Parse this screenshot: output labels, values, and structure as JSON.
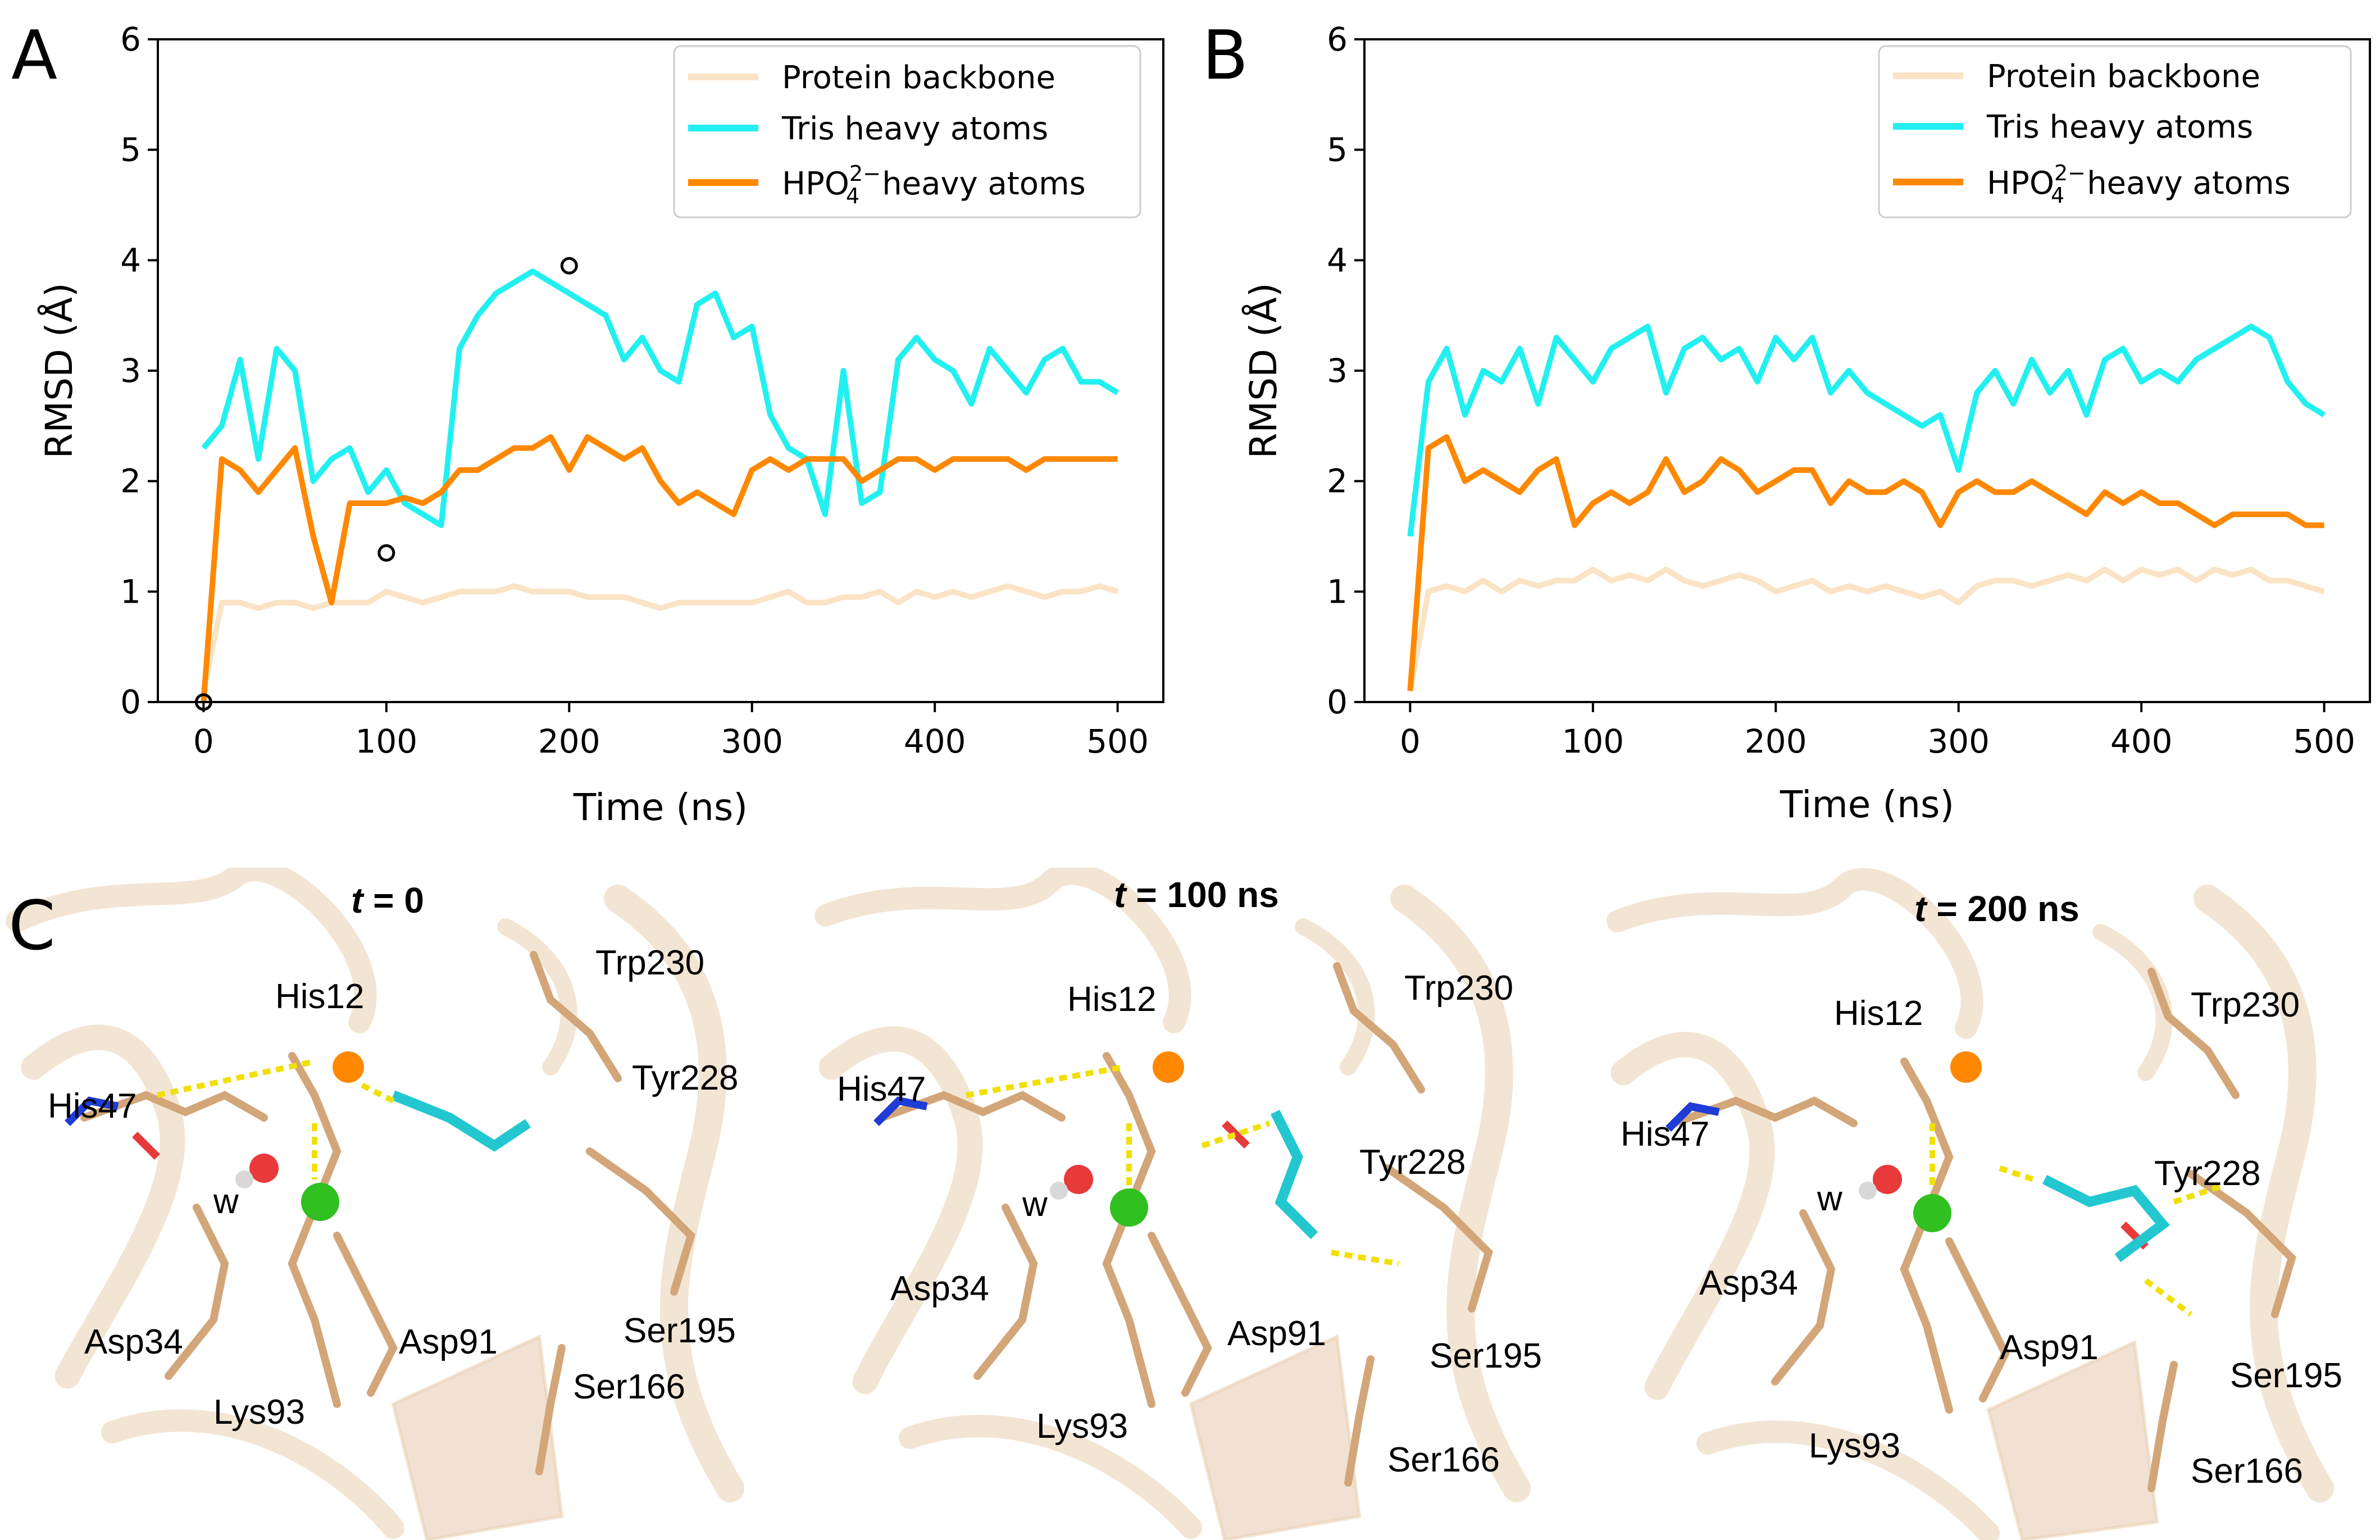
{
  "panels": {
    "a": "A",
    "b": "B",
    "c": "C"
  },
  "axes": {
    "xlabel": "Time (ns)",
    "ylabel": "RMSD (Å)",
    "xticks": [
      "0",
      "100",
      "200",
      "300",
      "400",
      "500"
    ],
    "yticks": [
      "0",
      "1",
      "2",
      "3",
      "4",
      "5",
      "6"
    ]
  },
  "legend": {
    "backbone": "Protein backbone",
    "tris": "Tris heavy atoms",
    "hpo_base": "HPO",
    "hpo_sup": "2−",
    "hpo_sub": "4",
    "hpo_rest": "heavy atoms"
  },
  "colors": {
    "backbone": "#fbe3c5",
    "tris": "#22f0f0",
    "hpo": "#ff8800"
  },
  "chart_data": [
    {
      "type": "line",
      "panel": "A",
      "xlabel": "Time (ns)",
      "ylabel": "RMSD (Å)",
      "xlim": [
        -25,
        525
      ],
      "ylim": [
        0,
        6
      ],
      "x": [
        0,
        10,
        20,
        30,
        40,
        50,
        60,
        70,
        80,
        90,
        100,
        110,
        120,
        130,
        140,
        150,
        160,
        170,
        180,
        190,
        200,
        210,
        220,
        230,
        240,
        250,
        260,
        270,
        280,
        290,
        300,
        310,
        320,
        330,
        340,
        350,
        360,
        370,
        380,
        390,
        400,
        410,
        420,
        430,
        440,
        450,
        460,
        470,
        480,
        490,
        500
      ],
      "series": [
        {
          "name": "Protein backbone",
          "values": [
            0.1,
            0.9,
            0.9,
            0.85,
            0.9,
            0.9,
            0.85,
            0.9,
            0.9,
            0.9,
            1.0,
            0.95,
            0.9,
            0.95,
            1.0,
            1.0,
            1.0,
            1.05,
            1.0,
            1.0,
            1.0,
            0.95,
            0.95,
            0.95,
            0.9,
            0.85,
            0.9,
            0.9,
            0.9,
            0.9,
            0.9,
            0.95,
            1.0,
            0.9,
            0.9,
            0.95,
            0.95,
            1.0,
            0.9,
            1.0,
            0.95,
            1.0,
            0.95,
            1.0,
            1.05,
            1.0,
            0.95,
            1.0,
            1.0,
            1.05,
            1.0
          ]
        },
        {
          "name": "Tris heavy atoms",
          "values": [
            2.3,
            2.5,
            3.1,
            2.2,
            3.2,
            3.0,
            2.0,
            2.2,
            2.3,
            1.9,
            2.1,
            1.8,
            1.7,
            1.6,
            3.2,
            3.5,
            3.7,
            3.8,
            3.9,
            3.8,
            3.7,
            3.6,
            3.5,
            3.1,
            3.3,
            3.0,
            2.9,
            3.6,
            3.7,
            3.3,
            3.4,
            2.6,
            2.3,
            2.2,
            1.7,
            3.0,
            1.8,
            1.9,
            3.1,
            3.3,
            3.1,
            3.0,
            2.7,
            3.2,
            3.0,
            2.8,
            3.1,
            3.2,
            2.9,
            2.9,
            2.8
          ]
        },
        {
          "name": "HPO4 2- heavy atoms",
          "values": [
            0.0,
            2.2,
            2.1,
            1.9,
            2.1,
            2.3,
            1.5,
            0.9,
            1.8,
            1.8,
            1.8,
            1.85,
            1.8,
            1.9,
            2.1,
            2.1,
            2.2,
            2.3,
            2.3,
            2.4,
            2.1,
            2.4,
            2.3,
            2.2,
            2.3,
            2.0,
            1.8,
            1.9,
            1.8,
            1.7,
            2.1,
            2.2,
            2.1,
            2.2,
            2.2,
            2.2,
            2.0,
            2.1,
            2.2,
            2.2,
            2.1,
            2.2,
            2.2,
            2.2,
            2.2,
            2.1,
            2.2,
            2.2,
            2.2,
            2.2,
            2.2
          ]
        }
      ],
      "markers": [
        {
          "x": 0,
          "y": 0.0
        },
        {
          "x": 100,
          "y": 1.35
        },
        {
          "x": 200,
          "y": 3.95
        }
      ],
      "legend_position": "top-right"
    },
    {
      "type": "line",
      "panel": "B",
      "xlabel": "Time (ns)",
      "ylabel": "RMSD (Å)",
      "xlim": [
        -25,
        525
      ],
      "ylim": [
        0,
        6
      ],
      "x": [
        0,
        10,
        20,
        30,
        40,
        50,
        60,
        70,
        80,
        90,
        100,
        110,
        120,
        130,
        140,
        150,
        160,
        170,
        180,
        190,
        200,
        210,
        220,
        230,
        240,
        250,
        260,
        270,
        280,
        290,
        300,
        310,
        320,
        330,
        340,
        350,
        360,
        370,
        380,
        390,
        400,
        410,
        420,
        430,
        440,
        450,
        460,
        470,
        480,
        490,
        500
      ],
      "series": [
        {
          "name": "Protein backbone",
          "values": [
            0.1,
            1.0,
            1.05,
            1.0,
            1.1,
            1.0,
            1.1,
            1.05,
            1.1,
            1.1,
            1.2,
            1.1,
            1.15,
            1.1,
            1.2,
            1.1,
            1.05,
            1.1,
            1.15,
            1.1,
            1.0,
            1.05,
            1.1,
            1.0,
            1.05,
            1.0,
            1.05,
            1.0,
            0.95,
            1.0,
            0.9,
            1.05,
            1.1,
            1.1,
            1.05,
            1.1,
            1.15,
            1.1,
            1.2,
            1.1,
            1.2,
            1.15,
            1.2,
            1.1,
            1.2,
            1.15,
            1.2,
            1.1,
            1.1,
            1.05,
            1.0
          ]
        },
        {
          "name": "Tris heavy atoms",
          "values": [
            1.5,
            2.9,
            3.2,
            2.6,
            3.0,
            2.9,
            3.2,
            2.7,
            3.3,
            3.1,
            2.9,
            3.2,
            3.3,
            3.4,
            2.8,
            3.2,
            3.3,
            3.1,
            3.2,
            2.9,
            3.3,
            3.1,
            3.3,
            2.8,
            3.0,
            2.8,
            2.7,
            2.6,
            2.5,
            2.6,
            2.1,
            2.8,
            3.0,
            2.7,
            3.1,
            2.8,
            3.0,
            2.6,
            3.1,
            3.2,
            2.9,
            3.0,
            2.9,
            3.1,
            3.2,
            3.3,
            3.4,
            3.3,
            2.9,
            2.7,
            2.6
          ]
        },
        {
          "name": "HPO4 2- heavy atoms",
          "values": [
            0.1,
            2.3,
            2.4,
            2.0,
            2.1,
            2.0,
            1.9,
            2.1,
            2.2,
            1.6,
            1.8,
            1.9,
            1.8,
            1.9,
            2.2,
            1.9,
            2.0,
            2.2,
            2.1,
            1.9,
            2.0,
            2.1,
            2.1,
            1.8,
            2.0,
            1.9,
            1.9,
            2.0,
            1.9,
            1.6,
            1.9,
            2.0,
            1.9,
            1.9,
            2.0,
            1.9,
            1.8,
            1.7,
            1.9,
            1.8,
            1.9,
            1.8,
            1.8,
            1.7,
            1.6,
            1.7,
            1.7,
            1.7,
            1.7,
            1.6,
            1.6
          ]
        }
      ],
      "legend_position": "top-right"
    }
  ],
  "snapshots": [
    {
      "title_italic": "t",
      "title_rest": " = 0",
      "labels": [
        "His12",
        "His47",
        "Trp230",
        "Tyr228",
        "Asp34",
        "Asp91",
        "Lys93",
        "Ser195",
        "Ser166",
        "w"
      ]
    },
    {
      "title_italic": "t",
      "title_rest": " = 100 ns",
      "labels": [
        "His12",
        "His47",
        "Trp230",
        "Tyr228",
        "Asp34",
        "Asp91",
        "Lys93",
        "Ser195",
        "Ser166",
        "w"
      ]
    },
    {
      "title_italic": "t",
      "title_rest": " = 200 ns",
      "labels": [
        "His12",
        "His47",
        "Trp230",
        "Tyr228",
        "Asp34",
        "Asp91",
        "Lys93",
        "Ser195",
        "Ser166",
        "w"
      ]
    }
  ]
}
